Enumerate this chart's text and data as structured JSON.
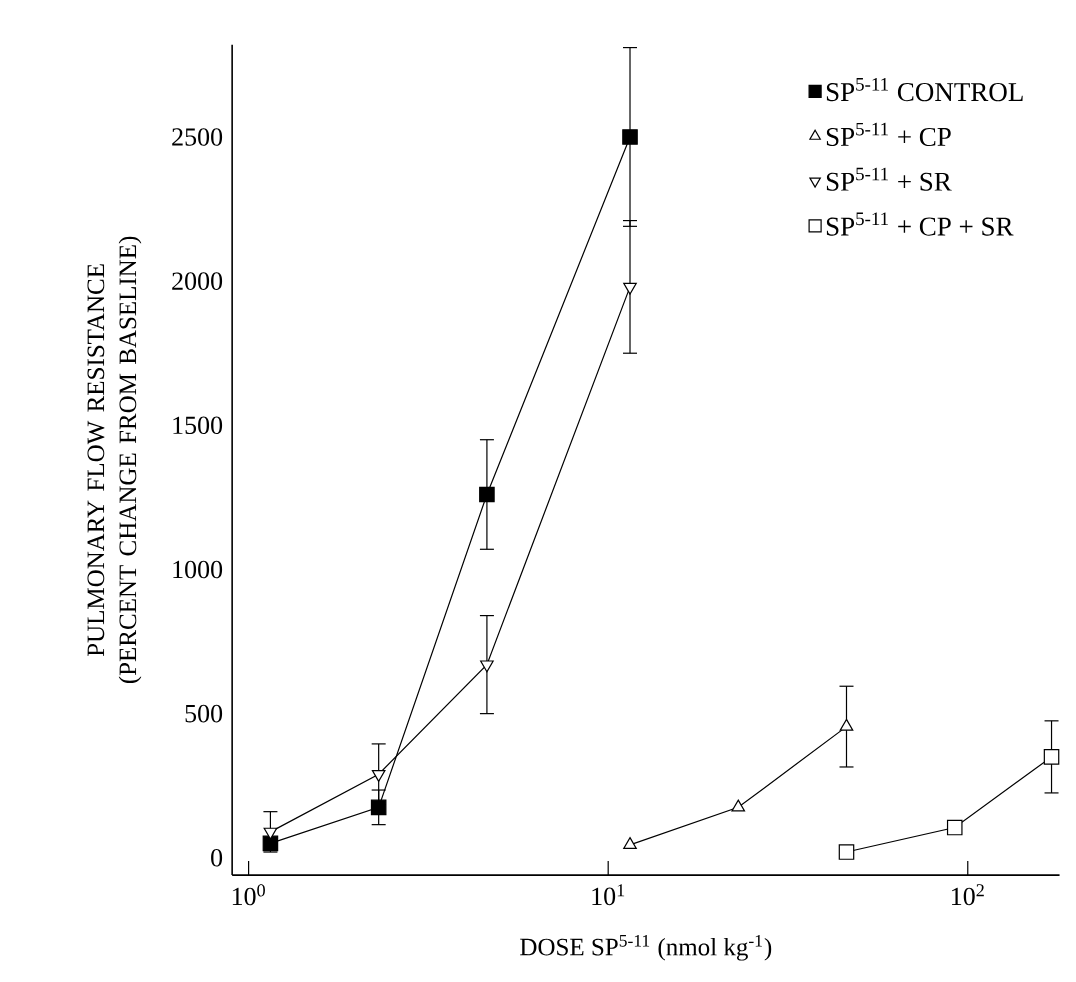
{
  "chart_data": {
    "type": "line",
    "xlabel": "DOSE SP$^{5-11}$ (nmol kg$^{-1}$)",
    "ylabel": "PULMONARY FLOW RESISTANCE (PERCENT CHANGE FROM BASELINE)",
    "log": "x",
    "xlim": [
      0.9,
      180
    ],
    "ylim": [
      -60,
      2820
    ],
    "xticks": [
      {
        "value": 1,
        "label": "10$^{0}$"
      },
      {
        "value": 10,
        "label": "10$^{1}$"
      },
      {
        "value": 100,
        "label": "10$^{2}$"
      }
    ],
    "yticks": [
      0,
      500,
      1000,
      1500,
      2000,
      2500
    ],
    "legend": "top right",
    "grid": false,
    "line_style": "solid",
    "series": [
      {
        "name": "SP$^{5-11}$ CONTROL",
        "color": "#000000",
        "marker": "square",
        "x": [
          1.15,
          2.3,
          4.6,
          11.5
        ],
        "values": [
          50,
          175,
          1260,
          2500
        ],
        "errors": [
          null,
          60,
          190,
          310
        ]
      },
      {
        "name": "SP$^{5-11}$ + CP",
        "color": "#000000",
        "marker": "triangle_open",
        "x": [
          11.5,
          23,
          46
        ],
        "values": [
          45,
          175,
          455
        ],
        "errors": [
          null,
          null,
          140
        ]
      },
      {
        "name": "SP$^{5-11}$ + SR",
        "color": "#000000",
        "marker": "triangle_down_open",
        "x": [
          1.15,
          2.3,
          4.6,
          11.5
        ],
        "values": [
          90,
          290,
          670,
          1980
        ],
        "errors": [
          70,
          105,
          170,
          230
        ]
      },
      {
        "name": "SP$^{5-11}$ + CP + SR",
        "color": "#000000",
        "marker": "square_open",
        "x": [
          46,
          92,
          171
        ],
        "values": [
          20,
          105,
          350
        ],
        "errors": [
          null,
          null,
          125
        ]
      }
    ]
  }
}
